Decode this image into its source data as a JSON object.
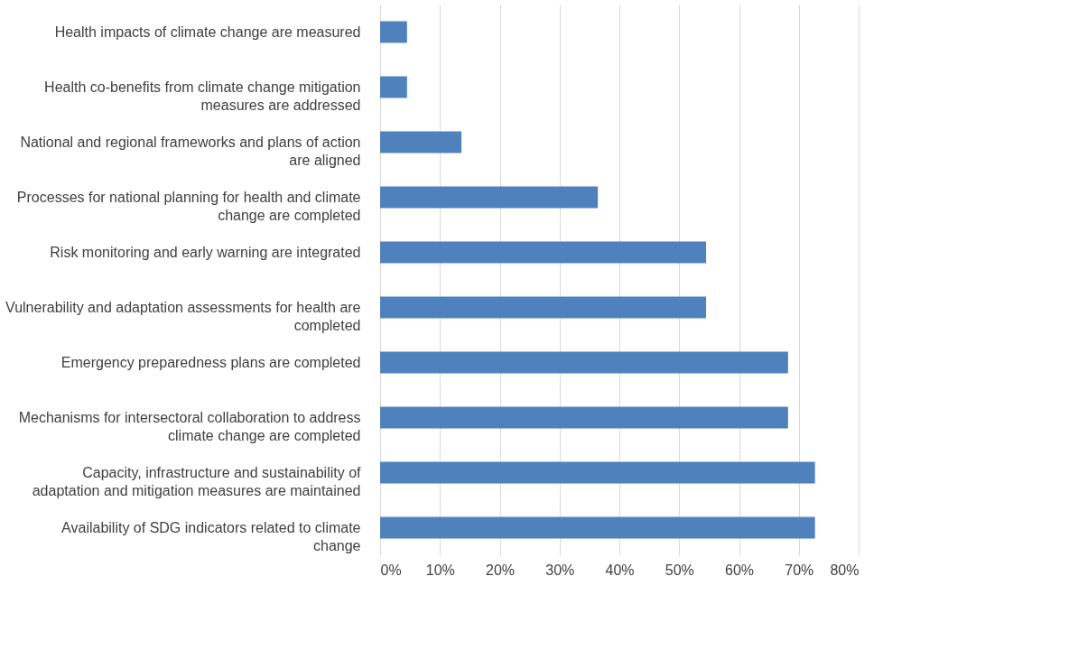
{
  "chart_data": {
    "type": "bar",
    "orientation": "horizontal",
    "categories": [
      "Health impacts of climate change are measured",
      "Health co-benefits from climate change mitigation measures are addressed",
      "National and regional frameworks and plans of action are aligned",
      "Processes for national planning for health and climate change are completed",
      "Risk monitoring and early warning are integrated",
      "Vulnerability and adaptation assessments for health are completed",
      "Emergency preparedness plans are completed",
      "Mechanisms for intersectoral collaboration to address climate change are completed",
      "Capacity, infrastructure and sustainability of adaptation and mitigation measures are maintained",
      "Availability of SDG indicators related to climate change"
    ],
    "values": [
      4.5,
      4.5,
      13.6,
      36.4,
      54.5,
      54.5,
      68.2,
      68.2,
      72.7,
      72.7
    ],
    "color": "#4f81bd",
    "xlim": [
      0,
      80
    ],
    "xticks": [
      {
        "value": 0,
        "label": "0%"
      },
      {
        "value": 10,
        "label": "10%"
      },
      {
        "value": 20,
        "label": "20%"
      },
      {
        "value": 30,
        "label": "30%"
      },
      {
        "value": 40,
        "label": "40%"
      },
      {
        "value": 50,
        "label": "50%"
      },
      {
        "value": 60,
        "label": "60%"
      },
      {
        "value": 70,
        "label": "70%"
      },
      {
        "value": 80,
        "label": "80%"
      }
    ],
    "grid": "x"
  }
}
